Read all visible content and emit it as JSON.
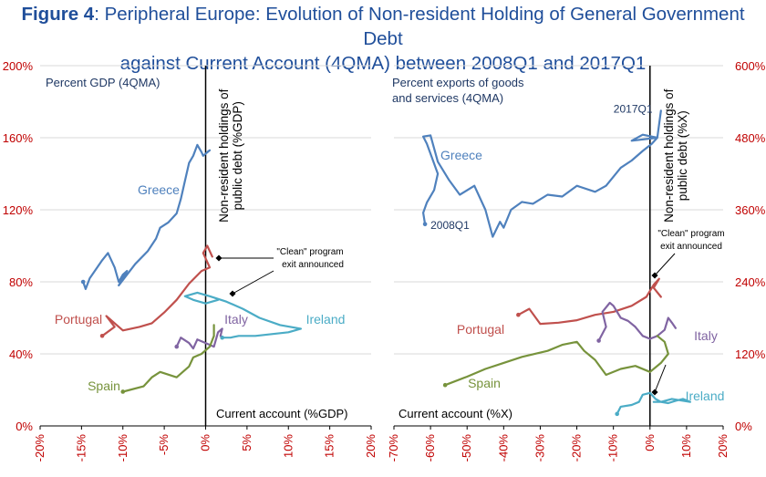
{
  "title": {
    "bold": "Figure 4",
    "line1_rest": ": Peripheral Europe: Evolution of Non-resident Holding of General Government Debt",
    "line2": "against Current Account (4QMA) between 2008Q1 and 2017Q1"
  },
  "colors": {
    "greece": "#4f81bd",
    "portugal": "#c0504d",
    "ireland": "#4bacc6",
    "italy": "#8064a2",
    "spain": "#77933c",
    "axis_text": "#c00000",
    "title": "#1f4e9a",
    "label_text": "#1f3864"
  },
  "chart_data": [
    {
      "type": "line",
      "panel": "left",
      "ylabel": "Percent GDP (4QMA)",
      "xlabel": "Current account (%GDP)",
      "vertical_axis_label_line1": "Non-resident holdings of",
      "vertical_axis_label_line2": "public debt (%GDP)",
      "xlim": [
        -20,
        20
      ],
      "ylim": [
        0,
        200
      ],
      "xticks": [
        "-20%",
        "-15%",
        "-10%",
        "-5%",
        "0%",
        "5%",
        "10%",
        "15%",
        "20%"
      ],
      "yticks": [
        "0%",
        "40%",
        "80%",
        "120%",
        "160%",
        "200%"
      ],
      "annotation_line1": "\"Clean\" program",
      "annotation_line2": "exit announced",
      "series": [
        {
          "name": "Greece",
          "key": "greece",
          "x": [
            -14.8,
            -14.5,
            -14.0,
            -12.5,
            -11.8,
            -11.0,
            -10.5,
            -10.0,
            -9.5,
            -10.5,
            -8.5,
            -7.0,
            -6.0,
            -5.5,
            -4.5,
            -3.5,
            -3.0,
            -2.5,
            -2.0,
            -1.5,
            -1.0,
            -0.5,
            -0.3,
            0.5,
            0.2
          ],
          "y": [
            80,
            76,
            82,
            92,
            96,
            88,
            80,
            84,
            86,
            78,
            90,
            97,
            104,
            110,
            113,
            118,
            126,
            136,
            146,
            150,
            156,
            152,
            150,
            153,
            152
          ]
        },
        {
          "name": "Portugal",
          "key": "portugal",
          "x": [
            -12.5,
            -11.0,
            -12.0,
            -10.0,
            -8.0,
            -6.5,
            -5.0,
            -3.5,
            -2.0,
            -0.5,
            0.5,
            -0.3,
            0.2,
            0.8
          ],
          "y": [
            50,
            55,
            61,
            53,
            55,
            57,
            63,
            70,
            79,
            86,
            88,
            96,
            100,
            94
          ]
        },
        {
          "name": "Ireland",
          "key": "ireland",
          "x": [
            2.0,
            3.0,
            4.0,
            6.0,
            8.0,
            10.0,
            11.5,
            9.0,
            6.5,
            4.5,
            2.5,
            0.5,
            -1.0,
            -2.5,
            -1.5,
            0.0,
            1.5
          ],
          "y": [
            49,
            49,
            50,
            50,
            51,
            52,
            54,
            56,
            60,
            65,
            69,
            72,
            74,
            72,
            70,
            68,
            70
          ]
        },
        {
          "name": "Italy",
          "key": "italy",
          "x": [
            -3.5,
            -3.0,
            -2.0,
            -1.5,
            -1.0,
            0.0,
            1.0,
            1.5,
            2.0,
            1.8
          ],
          "y": [
            44,
            49,
            46,
            43,
            48,
            46,
            44,
            52,
            54,
            50
          ]
        },
        {
          "name": "Spain",
          "key": "spain",
          "x": [
            -10.0,
            -7.5,
            -6.5,
            -5.5,
            -3.5,
            -2.0,
            -1.5,
            -0.5,
            0.5,
            1.0,
            1.0
          ],
          "y": [
            19,
            22,
            27,
            30,
            27,
            33,
            38,
            40,
            44,
            50,
            56
          ]
        }
      ]
    },
    {
      "type": "line",
      "panel": "right",
      "ylabel_line1": "Percent exports of goods",
      "ylabel_line2": "and services (4QMA)",
      "xlabel": "Current account (%X)",
      "vertical_axis_label_line1": "Non-resident holdings of",
      "vertical_axis_label_line2": "public debt (%X)",
      "xlim": [
        -70,
        20
      ],
      "ylim": [
        0,
        600
      ],
      "xticks": [
        "-70%",
        "-60%",
        "-50%",
        "-40%",
        "-30%",
        "-20%",
        "-10%",
        "0%",
        "10%",
        "20%"
      ],
      "yticks": [
        "0%",
        "120%",
        "240%",
        "360%",
        "480%",
        "600%"
      ],
      "annotation_line1": "\"Clean\" program",
      "annotation_line2": "exit announced",
      "label_2008q1": "2008Q1",
      "label_2017q1": "2017Q1",
      "series": [
        {
          "name": "Greece",
          "key": "greece",
          "x": [
            -61.5,
            -62.0,
            -61.0,
            -59.0,
            -58.0,
            -59.5,
            -61.0,
            -62.0,
            -60.0,
            -58.0,
            -55.0,
            -52.0,
            -48.0,
            -45.0,
            -43.0,
            -41.0,
            -40.0,
            -38.0,
            -35.0,
            -32.0,
            -28.0,
            -24.0,
            -20.0,
            -15.0,
            -12.0,
            -8.0,
            -5.0,
            -2.0,
            0.5,
            2.0,
            -5.0,
            -2.0,
            2.0,
            3.0
          ],
          "y": [
            336,
            355,
            372,
            393,
            420,
            445,
            470,
            482,
            484,
            440,
            410,
            385,
            400,
            360,
            315,
            340,
            330,
            360,
            373,
            370,
            385,
            382,
            400,
            390,
            400,
            430,
            442,
            458,
            470,
            480,
            475,
            485,
            480,
            525
          ]
        },
        {
          "name": "Portugal",
          "key": "portugal",
          "x": [
            -36.0,
            -33.0,
            -30.0,
            -25.0,
            -20.0,
            -15.0,
            -10.0,
            -5.0,
            -1.0,
            1.0,
            2.5,
            1.0,
            3.0
          ],
          "y": [
            185,
            195,
            170,
            172,
            176,
            185,
            190,
            200,
            215,
            235,
            245,
            230,
            215
          ]
        },
        {
          "name": "Ireland",
          "key": "ireland",
          "x": [
            -9.0,
            -8.0,
            -5.0,
            -3.0,
            -2.0,
            0.0,
            1.5,
            3.0,
            5.0,
            7.0,
            9.0,
            11.0,
            6.0,
            3.0,
            1.0
          ],
          "y": [
            20,
            32,
            35,
            40,
            52,
            55,
            45,
            40,
            38,
            42,
            45,
            40,
            45,
            40,
            40
          ]
        },
        {
          "name": "Italy",
          "key": "italy",
          "x": [
            -14.0,
            -12.0,
            -13.0,
            -11.0,
            -10.0,
            -8.0,
            -6.0,
            -4.0,
            -2.0,
            0.0,
            2.0,
            4.0,
            5.0,
            6.0,
            7.0
          ],
          "y": [
            142,
            165,
            190,
            205,
            200,
            180,
            175,
            165,
            150,
            145,
            150,
            160,
            180,
            172,
            163
          ]
        },
        {
          "name": "Spain",
          "key": "spain",
          "x": [
            -56.0,
            -50.0,
            -45.0,
            -40.0,
            -35.0,
            -28.0,
            -24.0,
            -20.0,
            -18.0,
            -15.0,
            -12.0,
            -8.0,
            -4.0,
            0.0,
            3.0,
            5.0,
            4.0,
            2.0
          ],
          "y": [
            68,
            82,
            95,
            105,
            115,
            125,
            135,
            140,
            125,
            110,
            85,
            95,
            100,
            90,
            105,
            120,
            140,
            150
          ]
        }
      ]
    }
  ]
}
